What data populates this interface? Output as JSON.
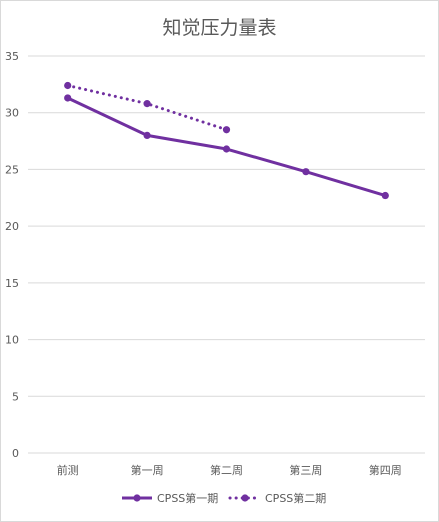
{
  "chart_data": {
    "type": "line",
    "title": "知觉压力量表",
    "categories": [
      "前测",
      "第一周",
      "第二周",
      "第三周",
      "第四周"
    ],
    "y_ticks": [
      "0",
      "5",
      "10",
      "15",
      "20",
      "25",
      "30",
      "35"
    ],
    "ylim": [
      0,
      35
    ],
    "grid": true,
    "legend_position": "bottom",
    "series": [
      {
        "name": "CPSS第一期",
        "values": [
          31.3,
          28.0,
          26.8,
          24.8,
          22.7
        ],
        "color": "#7030a0",
        "line_style": "solid"
      },
      {
        "name": "CPSS第二期",
        "values": [
          32.4,
          30.8,
          28.5,
          null,
          null
        ],
        "color": "#7030a0",
        "line_style": "dotted"
      }
    ]
  }
}
